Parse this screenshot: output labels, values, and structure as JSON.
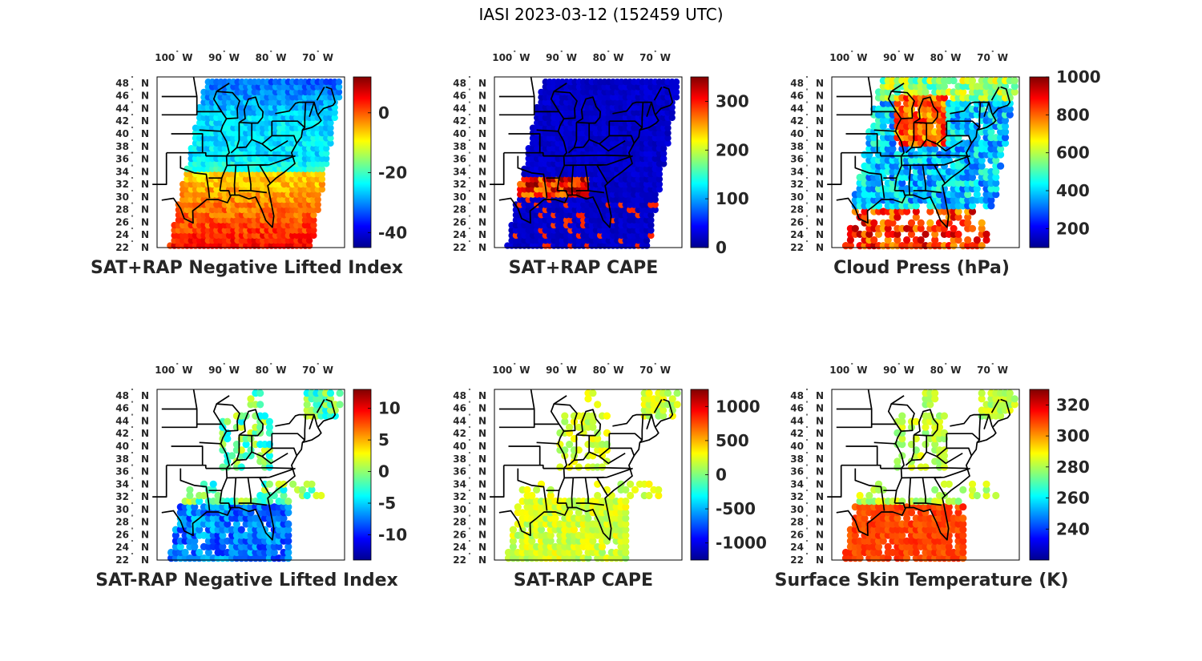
{
  "figure": {
    "title": "IASI 2023-03-12 (152459 UTC)"
  },
  "colors": {
    "border": "#000000",
    "text": "#262626",
    "land": "#ffffff"
  },
  "chart_data": [
    {
      "type": "heatmap",
      "id": "sat-rap-li",
      "title": "SAT+RAP Negative Lifted Index",
      "xlabel": "",
      "ylabel": "",
      "lon_ticks": [
        "100",
        "90",
        "80",
        "70"
      ],
      "lon_hemisphere": "W",
      "lat_ticks": [
        "48",
        "46",
        "44",
        "42",
        "40",
        "38",
        "36",
        "34",
        "32",
        "30",
        "28",
        "26",
        "24",
        "22"
      ],
      "lat_hemisphere": "N",
      "colorbar": {
        "range": [
          -45,
          12
        ],
        "ticks": [
          0,
          -20,
          -40
        ],
        "labels": [
          "0",
          "-20",
          "-40"
        ]
      },
      "coverage": "swath"
    },
    {
      "type": "heatmap",
      "id": "sat-rap-cape",
      "title": "SAT+RAP CAPE",
      "xlabel": "",
      "ylabel": "",
      "lon_ticks": [
        "100",
        "90",
        "80",
        "70"
      ],
      "lon_hemisphere": "W",
      "lat_ticks": [
        "48",
        "46",
        "44",
        "42",
        "40",
        "38",
        "36",
        "34",
        "32",
        "30",
        "28",
        "26",
        "24",
        "22"
      ],
      "lat_hemisphere": "N",
      "colorbar": {
        "range": [
          0,
          350
        ],
        "ticks": [
          300,
          200,
          100,
          0
        ],
        "labels": [
          "300",
          "200",
          "100",
          "0"
        ]
      },
      "coverage": "swath"
    },
    {
      "type": "heatmap",
      "id": "cloud-press",
      "title": "Cloud Press (hPa)",
      "xlabel": "",
      "ylabel": "",
      "lon_ticks": [
        "100",
        "90",
        "80",
        "70"
      ],
      "lon_hemisphere": "W",
      "lat_ticks": [
        "48",
        "46",
        "44",
        "42",
        "40",
        "38",
        "36",
        "34",
        "32",
        "30",
        "28",
        "26",
        "24",
        "22"
      ],
      "lat_hemisphere": "N",
      "colorbar": {
        "range": [
          100,
          1000
        ],
        "ticks": [
          1000,
          800,
          600,
          400,
          200
        ],
        "labels": [
          "1000",
          "800",
          "600",
          "400",
          "200"
        ]
      },
      "coverage": "scattered"
    },
    {
      "type": "heatmap",
      "id": "diff-li",
      "title": "SAT-RAP Negative Lifted Index",
      "xlabel": "",
      "ylabel": "",
      "lon_ticks": [
        "100",
        "90",
        "80",
        "70"
      ],
      "lon_hemisphere": "W",
      "lat_ticks": [
        "48",
        "46",
        "44",
        "42",
        "40",
        "38",
        "36",
        "34",
        "32",
        "30",
        "28",
        "26",
        "24",
        "22"
      ],
      "lat_hemisphere": "N",
      "colorbar": {
        "range": [
          -14,
          13
        ],
        "ticks": [
          10,
          5,
          0,
          -5,
          -10
        ],
        "labels": [
          "10",
          "5",
          "0",
          "-5",
          "-10"
        ]
      },
      "coverage": "clear"
    },
    {
      "type": "heatmap",
      "id": "diff-cape",
      "title": "SAT-RAP CAPE",
      "xlabel": "",
      "ylabel": "",
      "lon_ticks": [
        "100",
        "90",
        "80",
        "70"
      ],
      "lon_hemisphere": "W",
      "lat_ticks": [
        "48",
        "46",
        "44",
        "42",
        "40",
        "38",
        "36",
        "34",
        "32",
        "30",
        "28",
        "26",
        "24",
        "22"
      ],
      "lat_hemisphere": "N",
      "colorbar": {
        "range": [
          -1250,
          1250
        ],
        "ticks": [
          1000,
          500,
          0,
          -500,
          -1000
        ],
        "labels": [
          "1000",
          "500",
          "0",
          "-500",
          "-1000"
        ]
      },
      "coverage": "clear"
    },
    {
      "type": "heatmap",
      "id": "skin-temp",
      "title": "Surface Skin Temperature (K)",
      "xlabel": "",
      "ylabel": "",
      "lon_ticks": [
        "100",
        "90",
        "80",
        "70"
      ],
      "lon_hemisphere": "W",
      "lat_ticks": [
        "48",
        "46",
        "44",
        "42",
        "40",
        "38",
        "36",
        "34",
        "32",
        "30",
        "28",
        "26",
        "24",
        "22"
      ],
      "lat_hemisphere": "N",
      "colorbar": {
        "range": [
          220,
          330
        ],
        "ticks": [
          320,
          300,
          280,
          260,
          240
        ],
        "labels": [
          "320",
          "300",
          "280",
          "260",
          "240"
        ]
      },
      "coverage": "clear"
    }
  ]
}
